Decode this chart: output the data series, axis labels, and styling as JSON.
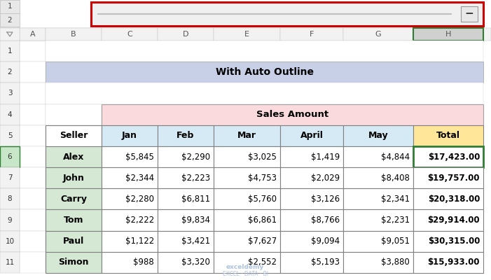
{
  "title": "With Auto Outline",
  "table_header": "Sales Amount",
  "columns": [
    "Seller",
    "Jan",
    "Feb",
    "Mar",
    "April",
    "May",
    "Total"
  ],
  "rows": [
    [
      "Alex",
      "$5,845",
      "$2,290",
      "$3,025",
      "$1,419",
      "$4,844",
      "$17,423.00"
    ],
    [
      "John",
      "$2,344",
      "$2,223",
      "$4,753",
      "$2,029",
      "$8,408",
      "$19,757.00"
    ],
    [
      "Carry",
      "$2,280",
      "$6,811",
      "$5,760",
      "$3,126",
      "$2,341",
      "$20,318.00"
    ],
    [
      "Tom",
      "$2,222",
      "$9,834",
      "$6,861",
      "$8,766",
      "$2,231",
      "$29,914.00"
    ],
    [
      "Paul",
      "$1,122",
      "$3,421",
      "$7,627",
      "$9,094",
      "$9,051",
      "$30,315.00"
    ],
    [
      "Simon",
      "$988",
      "$3,320",
      "$2,552",
      "$5,193",
      "$3,880",
      "$15,933.00"
    ]
  ],
  "excel_cols": [
    "A",
    "B",
    "C",
    "D",
    "E",
    "F",
    "G",
    "H"
  ],
  "excel_rows": [
    "1",
    "2",
    "3",
    "4",
    "5",
    "6",
    "7",
    "8",
    "9",
    "10",
    "11"
  ],
  "bg_color": "#FFFFFF",
  "sheet_bg": "#FFFFFF",
  "title_bg": "#C8D0E8",
  "table_header_bg": "#FADADD",
  "col_header_bg": "#D6EAF5",
  "seller_col_bg": "#D5E8D4",
  "total_col_bg": "#FFE699",
  "total_col_border_color": "#2E7D32",
  "data_bg": "#FFFFFF",
  "header_bar_bg": "#F0F0F0",
  "header_bar_border": "#CC0000",
  "minus_btn_bg": "#E8E8E8",
  "minus_btn_border": "#999999",
  "row_num_bg": "#F2F2F2",
  "col_letter_bg": "#F2F2F2",
  "col_H_bg": "#D0D0D0",
  "col_H_border": "#2E7D32",
  "row6_num_bg": "#C8E6C8",
  "grid_color": "#B0B0B0",
  "outer_border": "#5C5C5C",
  "watermark_color": "#B0C4DE"
}
